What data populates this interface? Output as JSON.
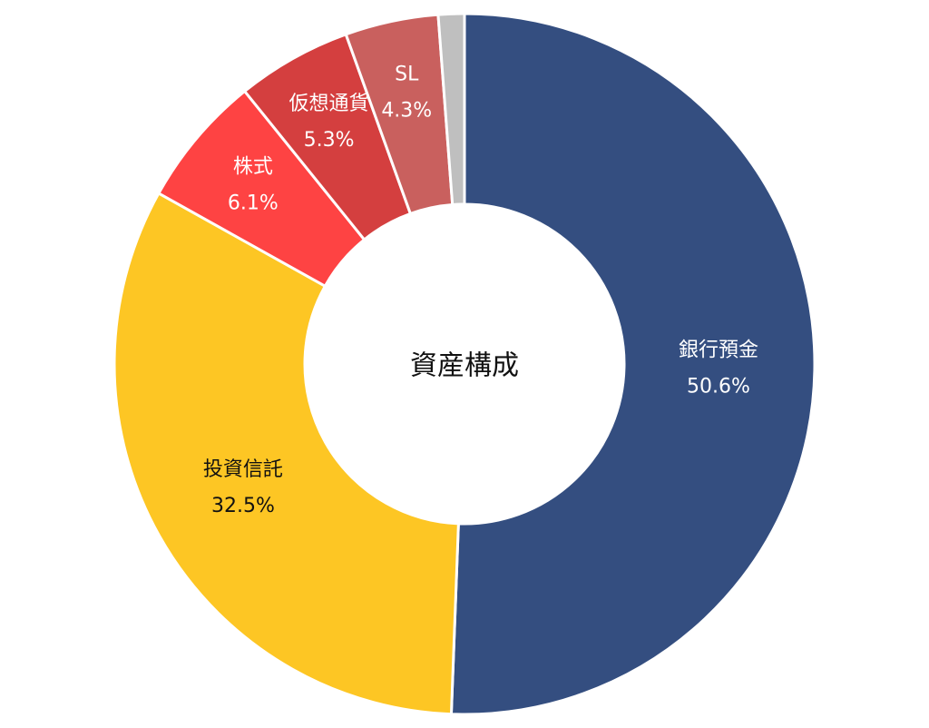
{
  "chart_data": {
    "type": "donut",
    "title": "資産構成",
    "categories": [
      "銀行預金",
      "投資信託",
      "株式",
      "仮想通貨",
      "SL",
      null
    ],
    "values": [
      50.6,
      32.5,
      6.1,
      5.3,
      4.3,
      1.2
    ],
    "value_labels": [
      "50.6%",
      "32.5%",
      "6.1%",
      "5.3%",
      "4.3%",
      null
    ],
    "colors": [
      "#344e80",
      "#fdc624",
      "#fe4343",
      "#d43f3f",
      "#c9605e",
      "#bfbfbf"
    ]
  }
}
